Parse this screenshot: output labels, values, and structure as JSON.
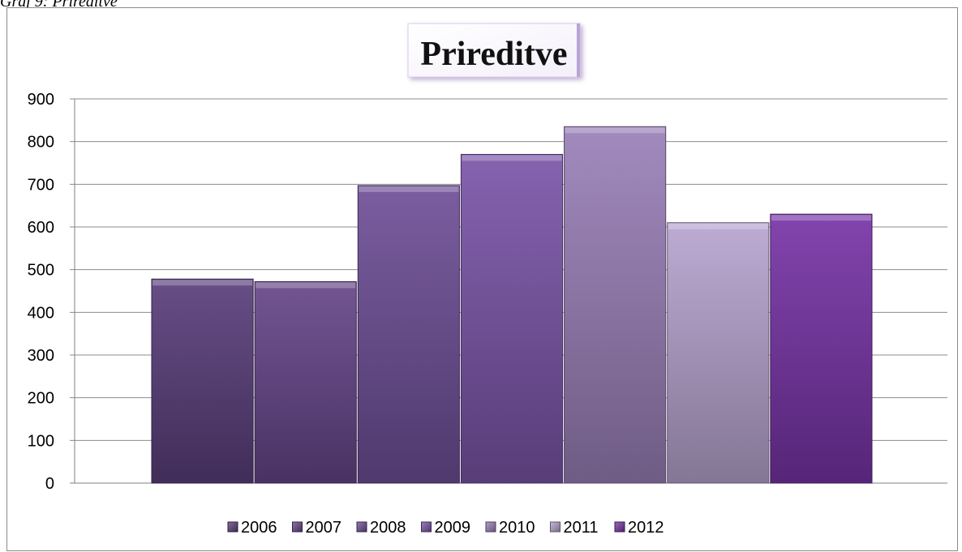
{
  "caption": "Graf 9: Prireditve",
  "chart_data": {
    "type": "bar",
    "title": "Prireditve",
    "xlabel": "",
    "ylabel": "",
    "ylim": [
      0,
      900
    ],
    "yticks": [
      "0",
      "100",
      "200",
      "300",
      "400",
      "500",
      "600",
      "700",
      "800",
      "900"
    ],
    "grid": true,
    "legend_position": "bottom",
    "series": [
      {
        "name": "2006",
        "value": 478,
        "color": "#5a3f7c"
      },
      {
        "name": "2007",
        "value": 472,
        "color": "#664689"
      },
      {
        "name": "2008",
        "value": 697,
        "color": "#6e4f97"
      },
      {
        "name": "2009",
        "value": 770,
        "color": "#7a55a8"
      },
      {
        "name": "2010",
        "value": 835,
        "color": "#9a80b8"
      },
      {
        "name": "2011",
        "value": 610,
        "color": "#b7a4cf"
      },
      {
        "name": "2012",
        "value": 630,
        "color": "#7734a6"
      }
    ]
  }
}
